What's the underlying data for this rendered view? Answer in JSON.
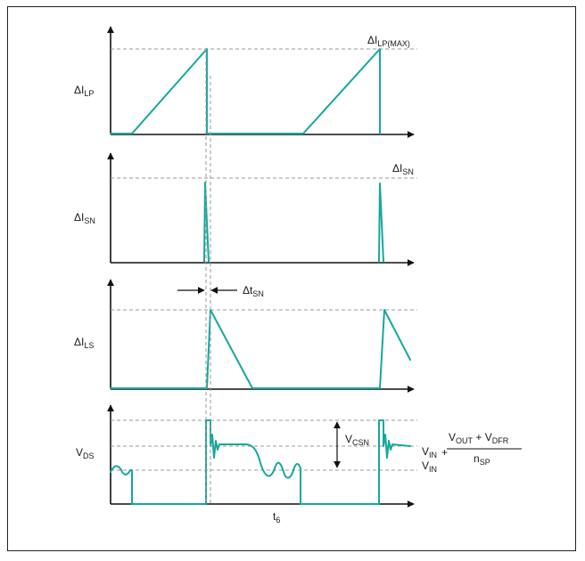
{
  "colors": {
    "waveform": "#15a89c",
    "axis": "#111111",
    "guide": "#9a9a9a"
  },
  "panels": {
    "ilp": {
      "y_label": {
        "delta": "Δ",
        "main": "I",
        "sub": "LP"
      },
      "ref_label": {
        "delta": "Δ",
        "main": "I",
        "sub": "LP(MAX)"
      }
    },
    "isn": {
      "y_label": {
        "delta": "Δ",
        "main": "I",
        "sub": "SN"
      },
      "ref_label": {
        "delta": "Δ",
        "main": "I",
        "sub": "SN"
      }
    },
    "ils": {
      "y_label": {
        "delta": "Δ",
        "main": "I",
        "sub": "LS"
      },
      "interval_label": {
        "delta": "Δ",
        "main": "t",
        "sub": "SN"
      }
    },
    "vds": {
      "y_label": {
        "main": "V",
        "sub": "DS"
      },
      "vcsn_label": {
        "main": "V",
        "sub": "CSN"
      },
      "vin_label": {
        "main": "V",
        "sub": "IN"
      },
      "formula": {
        "vin": {
          "main": "V",
          "sub": "IN"
        },
        "plus": "+",
        "numerator": [
          {
            "main": "V",
            "sub": "OUT"
          },
          {
            "text": " + "
          },
          {
            "main": "V",
            "sub": "DFR"
          }
        ],
        "denominator": {
          "main": "n",
          "sub": "SP"
        }
      },
      "time_label": {
        "main": "t",
        "sub": "6"
      }
    }
  }
}
